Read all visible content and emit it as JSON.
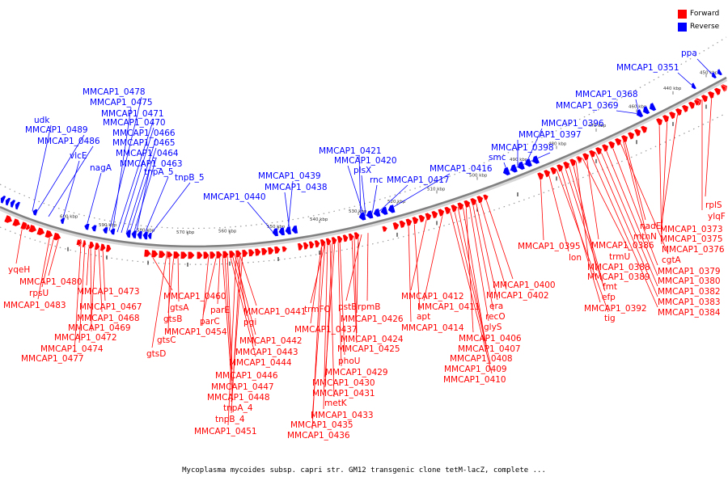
{
  "title": "Mycoplasma mycoides subsp. capri str. GM12 transgenic clone tetM-lacZ, complete ...",
  "legend": [
    {
      "label": "Forward",
      "color": "#ff0000"
    },
    {
      "label": "Reverse",
      "color": "#0000ff"
    }
  ],
  "colors": {
    "forward": "#ff0000",
    "reverse": "#0000ff",
    "backbone": "#808080"
  },
  "ticks": [
    "450 kbp",
    "440 kbp",
    "460 kbp",
    "470 kbp",
    "480 kbp",
    "490 kbp",
    "500 kbp",
    "510 kbp",
    "520 kbp",
    "530 kbp",
    "540 kbp",
    "550 kbp",
    "560 kbp",
    "570 kbp",
    "580 kbp",
    "590 kbp",
    "600 kbp"
  ],
  "reverse_labels": [
    "ppa",
    "MMCAP1_0351",
    "MMCAP1_0368",
    "MMCAP1_0369",
    "MMCAP1_0396",
    "MMCAP1_0397",
    "MMCAP1_0398",
    "smc",
    "MMCAP1_0416",
    "MMCAP1_0417",
    "rnc",
    "plsX",
    "MMCAP1_0420",
    "MMCAP1_0421",
    "MMCAP1_0438",
    "MMCAP1_0439",
    "MMCAP1_0440",
    "tnpB_5",
    "tnpA_5",
    "MMCAP1_0463",
    "MMCAP1_0464",
    "MMCAP1_0465",
    "MMCAP1_0466",
    "MMCAP1_0470",
    "MMCAP1_0471",
    "MMCAP1_0475",
    "MMCAP1_0478",
    "nagA",
    "vlcE",
    "MMCAP1_0486",
    "MMCAP1_0489",
    "udk"
  ],
  "forward_labels": [
    "rplS",
    "ylqF",
    "MMCAP1_0373",
    "MMCAP1_0375",
    "MMCAP1_0376",
    "nadE",
    "mtnN",
    "cgtA",
    "MMCAP1_0379",
    "MMCAP1_0380",
    "MMCAP1_0382",
    "MMCAP1_0383",
    "MMCAP1_0384",
    "MMCAP1_0386",
    "trmU",
    "MMCAP1_0388",
    "MMCAP1_0389",
    "fmt",
    "efp",
    "MMCAP1_0392",
    "tig",
    "lon",
    "MMCAP1_0395",
    "MMCAP1_0400",
    "MMCAP1_0402",
    "era",
    "recO",
    "glyS",
    "MMCAP1_0406",
    "MMCAP1_0407",
    "MMCAP1_0408",
    "MMCAP1_0409",
    "MMCAP1_0410",
    "MMCAP1_0411",
    "MMCAP1_0412",
    "apt",
    "MMCAP1_0414",
    "rpmB",
    "pstB",
    "MMCAP1_0426",
    "MMCAP1_0424",
    "MMCAP1_0425",
    "trmFO",
    "MMCAP1_0437",
    "phoU",
    "MMCAP1_0429",
    "MMCAP1_0430",
    "MMCAP1_0431",
    "metK",
    "MMCAP1_0433",
    "MMCAP1_0435",
    "MMCAP1_0436",
    "MMCAP1_0441",
    "pgi",
    "MMCAP1_0442",
    "MMCAP1_0443",
    "MMCAP1_0444",
    "MMCAP1_0446",
    "MMCAP1_0447",
    "MMCAP1_0448",
    "tnpA_4",
    "tnpB_4",
    "MMCAP1_0451",
    "parE",
    "parC",
    "MMCAP1_0454",
    "gtsA",
    "gtsB",
    "gtsC",
    "gtsD",
    "MMCAP1_0460",
    "MMCAP1_0467",
    "MMCAP1_0468",
    "MMCAP1_0469",
    "MMCAP1_0472",
    "MMCAP1_0473",
    "MMCAP1_0474",
    "MMCAP1_0477",
    "MMCAP1_0480",
    "rpsU",
    "MMCAP1_0483",
    "yqeH"
  ]
}
